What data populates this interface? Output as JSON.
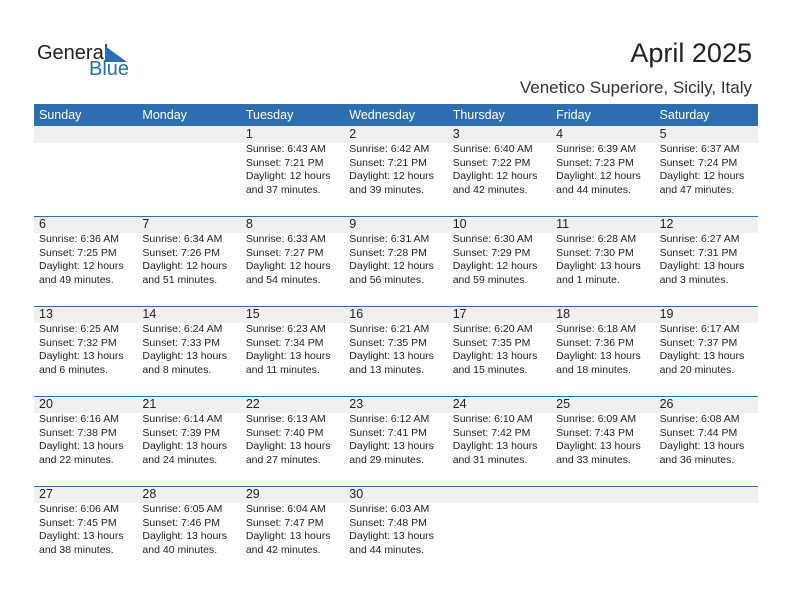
{
  "logo": {
    "text1": "General",
    "text2": "Blue"
  },
  "title": "April 2025",
  "location": "Venetico Superiore, Sicily, Italy",
  "weekdays": [
    "Sunday",
    "Monday",
    "Tuesday",
    "Wednesday",
    "Thursday",
    "Friday",
    "Saturday"
  ],
  "first_weekday_index": 2,
  "colors": {
    "header": "#2e6eb0",
    "date_strip": "#f0f0f0"
  },
  "days": [
    {
      "day": "1",
      "sunrise": "Sunrise: 6:43 AM",
      "sunset": "Sunset: 7:21 PM",
      "daylight": "Daylight: 12 hours",
      "minutes": "and 37 minutes."
    },
    {
      "day": "2",
      "sunrise": "Sunrise: 6:42 AM",
      "sunset": "Sunset: 7:21 PM",
      "daylight": "Daylight: 12 hours",
      "minutes": "and 39 minutes."
    },
    {
      "day": "3",
      "sunrise": "Sunrise: 6:40 AM",
      "sunset": "Sunset: 7:22 PM",
      "daylight": "Daylight: 12 hours",
      "minutes": "and 42 minutes."
    },
    {
      "day": "4",
      "sunrise": "Sunrise: 6:39 AM",
      "sunset": "Sunset: 7:23 PM",
      "daylight": "Daylight: 12 hours",
      "minutes": "and 44 minutes."
    },
    {
      "day": "5",
      "sunrise": "Sunrise: 6:37 AM",
      "sunset": "Sunset: 7:24 PM",
      "daylight": "Daylight: 12 hours",
      "minutes": "and 47 minutes."
    },
    {
      "day": "6",
      "sunrise": "Sunrise: 6:36 AM",
      "sunset": "Sunset: 7:25 PM",
      "daylight": "Daylight: 12 hours",
      "minutes": "and 49 minutes."
    },
    {
      "day": "7",
      "sunrise": "Sunrise: 6:34 AM",
      "sunset": "Sunset: 7:26 PM",
      "daylight": "Daylight: 12 hours",
      "minutes": "and 51 minutes."
    },
    {
      "day": "8",
      "sunrise": "Sunrise: 6:33 AM",
      "sunset": "Sunset: 7:27 PM",
      "daylight": "Daylight: 12 hours",
      "minutes": "and 54 minutes."
    },
    {
      "day": "9",
      "sunrise": "Sunrise: 6:31 AM",
      "sunset": "Sunset: 7:28 PM",
      "daylight": "Daylight: 12 hours",
      "minutes": "and 56 minutes."
    },
    {
      "day": "10",
      "sunrise": "Sunrise: 6:30 AM",
      "sunset": "Sunset: 7:29 PM",
      "daylight": "Daylight: 12 hours",
      "minutes": "and 59 minutes."
    },
    {
      "day": "11",
      "sunrise": "Sunrise: 6:28 AM",
      "sunset": "Sunset: 7:30 PM",
      "daylight": "Daylight: 13 hours",
      "minutes": "and 1 minute."
    },
    {
      "day": "12",
      "sunrise": "Sunrise: 6:27 AM",
      "sunset": "Sunset: 7:31 PM",
      "daylight": "Daylight: 13 hours",
      "minutes": "and 3 minutes."
    },
    {
      "day": "13",
      "sunrise": "Sunrise: 6:25 AM",
      "sunset": "Sunset: 7:32 PM",
      "daylight": "Daylight: 13 hours",
      "minutes": "and 6 minutes."
    },
    {
      "day": "14",
      "sunrise": "Sunrise: 6:24 AM",
      "sunset": "Sunset: 7:33 PM",
      "daylight": "Daylight: 13 hours",
      "minutes": "and 8 minutes."
    },
    {
      "day": "15",
      "sunrise": "Sunrise: 6:23 AM",
      "sunset": "Sunset: 7:34 PM",
      "daylight": "Daylight: 13 hours",
      "minutes": "and 11 minutes."
    },
    {
      "day": "16",
      "sunrise": "Sunrise: 6:21 AM",
      "sunset": "Sunset: 7:35 PM",
      "daylight": "Daylight: 13 hours",
      "minutes": "and 13 minutes."
    },
    {
      "day": "17",
      "sunrise": "Sunrise: 6:20 AM",
      "sunset": "Sunset: 7:35 PM",
      "daylight": "Daylight: 13 hours",
      "minutes": "and 15 minutes."
    },
    {
      "day": "18",
      "sunrise": "Sunrise: 6:18 AM",
      "sunset": "Sunset: 7:36 PM",
      "daylight": "Daylight: 13 hours",
      "minutes": "and 18 minutes."
    },
    {
      "day": "19",
      "sunrise": "Sunrise: 6:17 AM",
      "sunset": "Sunset: 7:37 PM",
      "daylight": "Daylight: 13 hours",
      "minutes": "and 20 minutes."
    },
    {
      "day": "20",
      "sunrise": "Sunrise: 6:16 AM",
      "sunset": "Sunset: 7:38 PM",
      "daylight": "Daylight: 13 hours",
      "minutes": "and 22 minutes."
    },
    {
      "day": "21",
      "sunrise": "Sunrise: 6:14 AM",
      "sunset": "Sunset: 7:39 PM",
      "daylight": "Daylight: 13 hours",
      "minutes": "and 24 minutes."
    },
    {
      "day": "22",
      "sunrise": "Sunrise: 6:13 AM",
      "sunset": "Sunset: 7:40 PM",
      "daylight": "Daylight: 13 hours",
      "minutes": "and 27 minutes."
    },
    {
      "day": "23",
      "sunrise": "Sunrise: 6:12 AM",
      "sunset": "Sunset: 7:41 PM",
      "daylight": "Daylight: 13 hours",
      "minutes": "and 29 minutes."
    },
    {
      "day": "24",
      "sunrise": "Sunrise: 6:10 AM",
      "sunset": "Sunset: 7:42 PM",
      "daylight": "Daylight: 13 hours",
      "minutes": "and 31 minutes."
    },
    {
      "day": "25",
      "sunrise": "Sunrise: 6:09 AM",
      "sunset": "Sunset: 7:43 PM",
      "daylight": "Daylight: 13 hours",
      "minutes": "and 33 minutes."
    },
    {
      "day": "26",
      "sunrise": "Sunrise: 6:08 AM",
      "sunset": "Sunset: 7:44 PM",
      "daylight": "Daylight: 13 hours",
      "minutes": "and 36 minutes."
    },
    {
      "day": "27",
      "sunrise": "Sunrise: 6:06 AM",
      "sunset": "Sunset: 7:45 PM",
      "daylight": "Daylight: 13 hours",
      "minutes": "and 38 minutes."
    },
    {
      "day": "28",
      "sunrise": "Sunrise: 6:05 AM",
      "sunset": "Sunset: 7:46 PM",
      "daylight": "Daylight: 13 hours",
      "minutes": "and 40 minutes."
    },
    {
      "day": "29",
      "sunrise": "Sunrise: 6:04 AM",
      "sunset": "Sunset: 7:47 PM",
      "daylight": "Daylight: 13 hours",
      "minutes": "and 42 minutes."
    },
    {
      "day": "30",
      "sunrise": "Sunrise: 6:03 AM",
      "sunset": "Sunset: 7:48 PM",
      "daylight": "Daylight: 13 hours",
      "minutes": "and 44 minutes."
    }
  ]
}
